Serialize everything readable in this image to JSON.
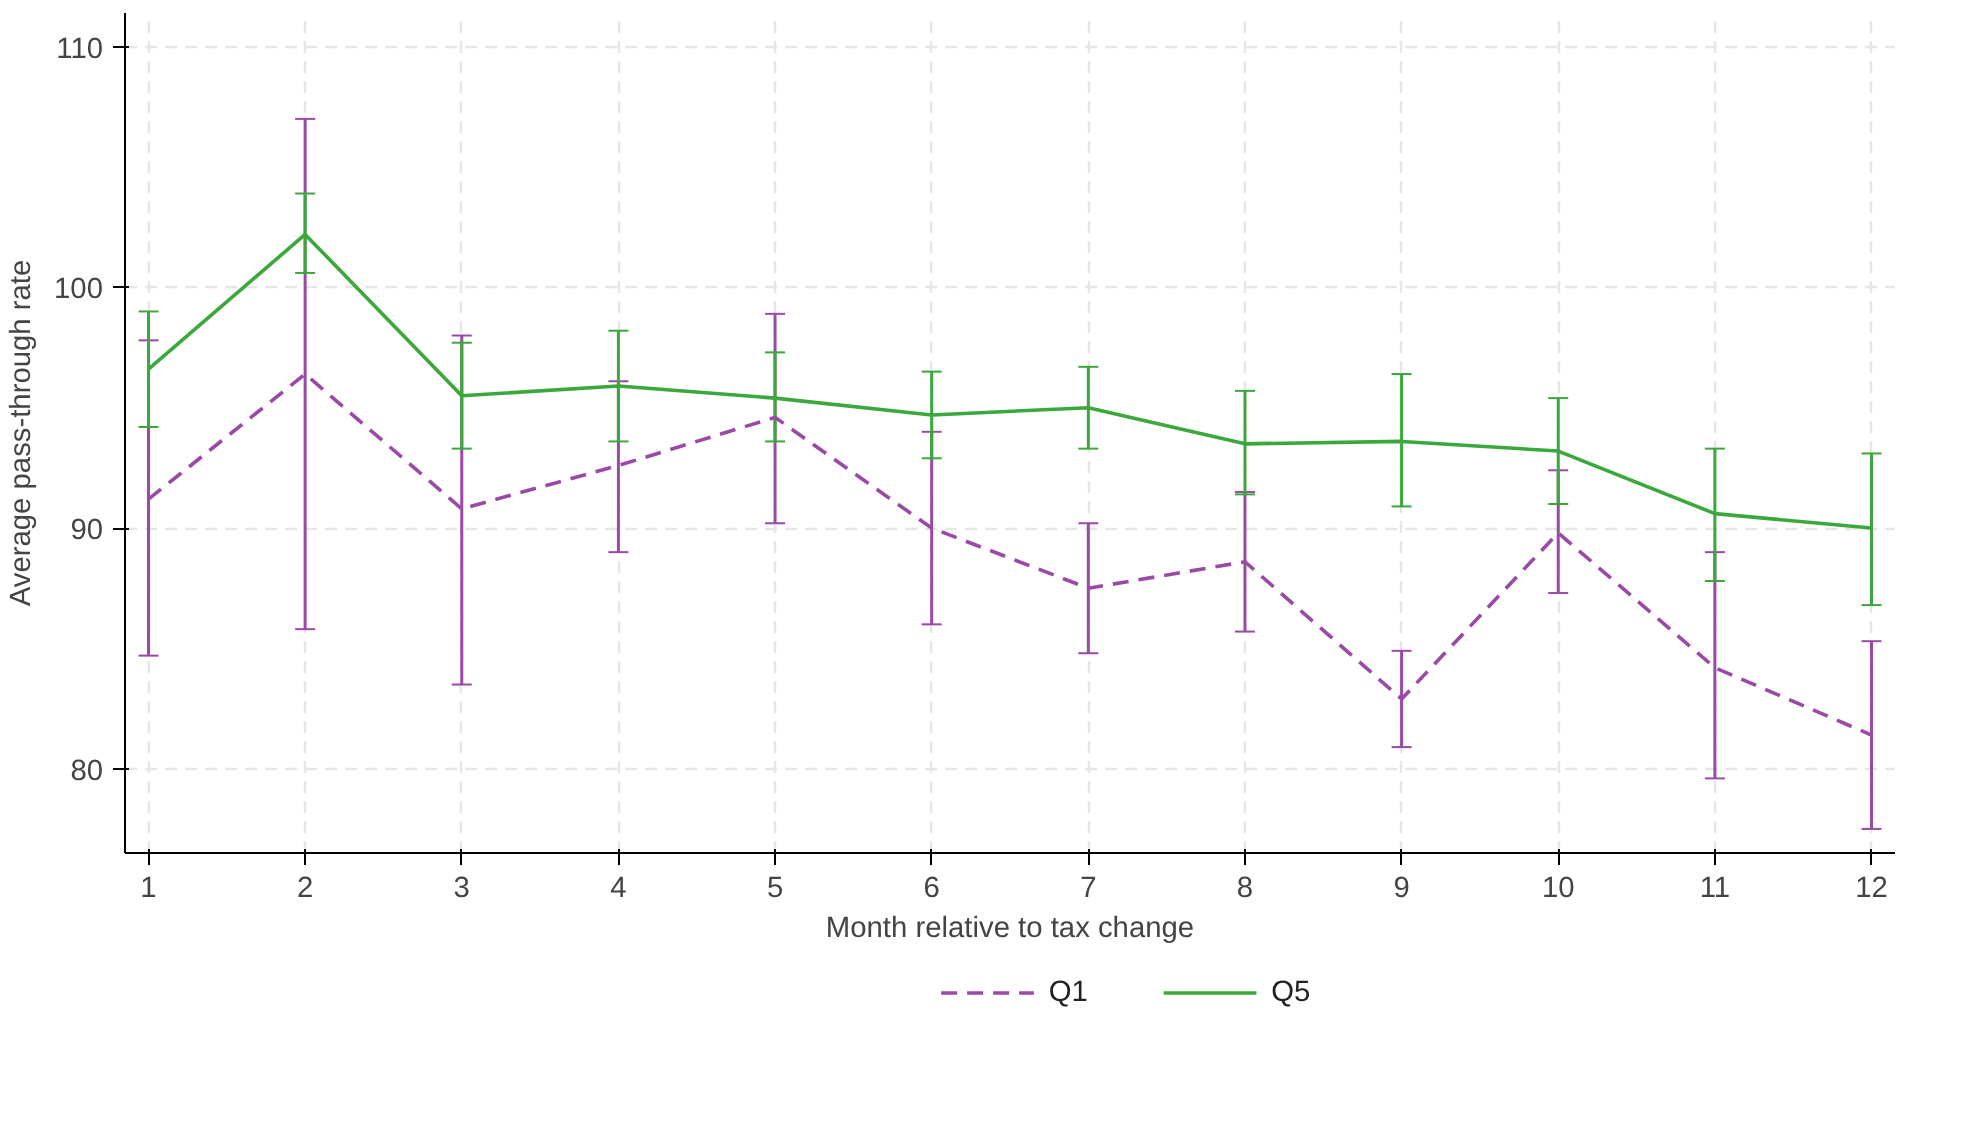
{
  "chart_data": {
    "type": "line",
    "xlabel": "Month relative to tax change",
    "ylabel": "Average pass-through rate",
    "x": [
      1,
      2,
      3,
      4,
      5,
      6,
      7,
      8,
      9,
      10,
      11,
      12
    ],
    "xlim": [
      0.85,
      12.15
    ],
    "xticks": [
      1,
      2,
      3,
      4,
      5,
      6,
      7,
      8,
      9,
      10,
      11,
      12
    ],
    "ylim": [
      76.5,
      111.4
    ],
    "yticks": [
      80,
      90,
      100,
      110
    ],
    "grid": true,
    "legend": "bottom",
    "series": [
      {
        "name": "Q1",
        "color": "#9a4aa6",
        "line_style": "dashed",
        "values": [
          91.2,
          96.4,
          90.8,
          92.6,
          94.6,
          90.0,
          87.5,
          88.6,
          82.9,
          89.8,
          84.2,
          81.4
        ],
        "errors": [
          [
            84.7,
            97.8
          ],
          [
            85.8,
            107.0
          ],
          [
            83.5,
            98.0
          ],
          [
            89.0,
            96.1
          ],
          [
            90.2,
            98.9
          ],
          [
            86.0,
            94.0
          ],
          [
            84.8,
            90.2
          ],
          [
            85.7,
            91.5
          ],
          [
            80.9,
            84.9
          ],
          [
            87.3,
            92.4
          ],
          [
            79.6,
            89.0
          ],
          [
            77.5,
            85.3
          ]
        ]
      },
      {
        "name": "Q5",
        "color": "#3aa83a",
        "line_style": "solid",
        "values": [
          96.6,
          102.2,
          95.5,
          95.9,
          95.4,
          94.7,
          95.0,
          93.5,
          93.6,
          93.2,
          90.6,
          90.0
        ],
        "errors": [
          [
            94.2,
            99.0
          ],
          [
            100.6,
            103.9
          ],
          [
            93.3,
            97.7
          ],
          [
            93.6,
            98.2
          ],
          [
            93.6,
            97.3
          ],
          [
            92.9,
            96.5
          ],
          [
            93.3,
            96.7
          ],
          [
            91.4,
            95.7
          ],
          [
            90.9,
            96.4
          ],
          [
            91.0,
            95.4
          ],
          [
            87.8,
            93.3
          ],
          [
            86.8,
            93.1
          ]
        ]
      }
    ]
  }
}
